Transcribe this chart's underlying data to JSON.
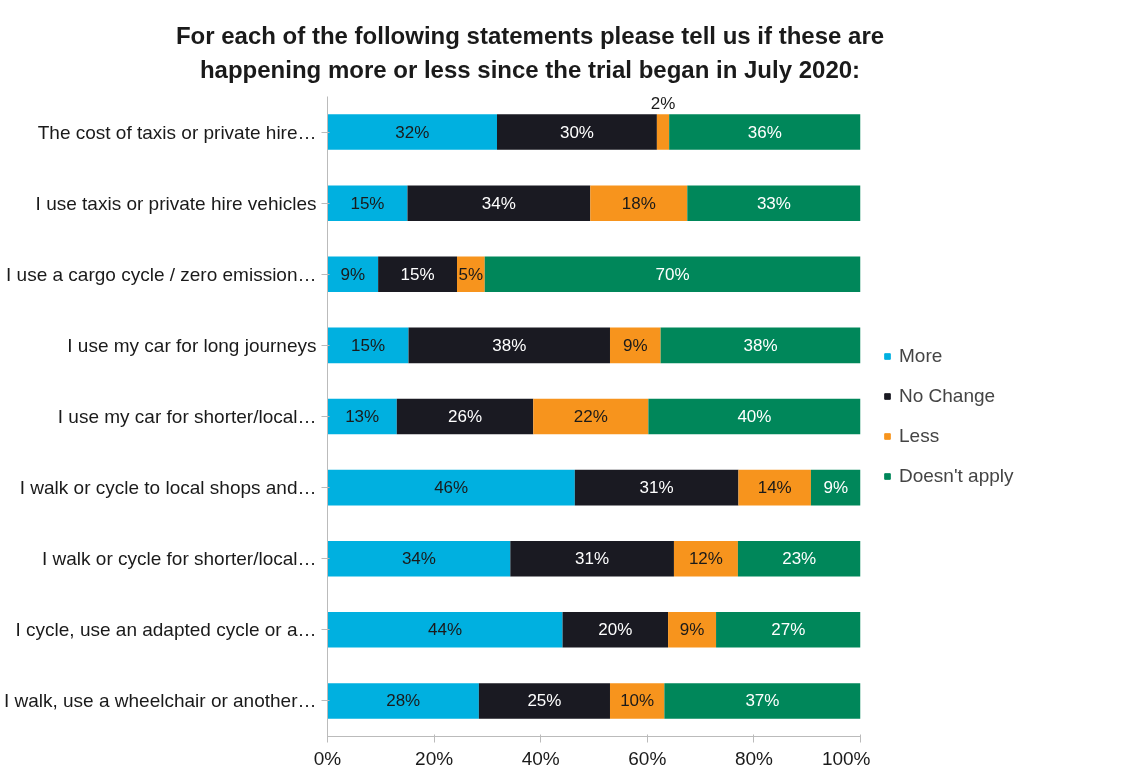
{
  "chart_data": {
    "type": "bar",
    "orientation": "horizontal",
    "stacked": true,
    "title": "For each of the following statements please tell us if these are happening more or less since the trial began in July 2020:",
    "categories": [
      "The cost of taxis or private hire…",
      "I use taxis or private hire vehicles",
      "I use a cargo cycle / zero emission…",
      "I use my car for long journeys",
      "I use my car for shorter/local…",
      "I walk or cycle to local shops and…",
      "I walk or cycle for shorter/local…",
      "I cycle, use an adapted cycle or a…",
      "I walk, use a wheelchair or another…"
    ],
    "series": [
      {
        "name": "More",
        "color": "#00b0e0",
        "values": [
          31.8,
          15,
          9.5,
          15.2,
          13,
          46.4,
          34.3,
          44.1,
          28.4
        ],
        "value_labels": [
          "32%",
          "15%",
          "9%",
          "15%",
          "13%",
          "46%",
          "34%",
          "44%",
          "28%"
        ]
      },
      {
        "name": "No Change",
        "color": "#1a1a22",
        "values": [
          30,
          34.3,
          14.8,
          37.8,
          25.6,
          30.7,
          30.7,
          19.8,
          24.6
        ],
        "value_labels": [
          "30%",
          "34%",
          "15%",
          "38%",
          "26%",
          "31%",
          "31%",
          "20%",
          "25%"
        ]
      },
      {
        "name": "Less",
        "color": "#f7941d",
        "values": [
          2.3,
          18.2,
          5.2,
          9.5,
          21.6,
          13.6,
          12,
          9,
          10.2
        ],
        "value_labels": [
          "2%",
          "18%",
          "5%",
          "9%",
          "22%",
          "14%",
          "12%",
          "9%",
          "10%"
        ]
      },
      {
        "name": "Doesn't apply",
        "color": "#00875a",
        "values": [
          35.9,
          32.5,
          70.5,
          37.5,
          39.8,
          9.3,
          23,
          27.1,
          36.8
        ],
        "value_labels": [
          "36%",
          "33%",
          "70%",
          "38%",
          "40%",
          "9%",
          "23%",
          "27%",
          "37%"
        ]
      }
    ],
    "xlim": [
      0,
      100
    ],
    "xticks": [
      {
        "value": 0,
        "label": "0%"
      },
      {
        "value": 20,
        "label": "20%"
      },
      {
        "value": 40,
        "label": "40%"
      },
      {
        "value": 60,
        "label": "60%"
      },
      {
        "value": 80,
        "label": "80%"
      },
      {
        "value": 100,
        "label": "100%"
      }
    ],
    "grid": false,
    "legend": "right"
  }
}
